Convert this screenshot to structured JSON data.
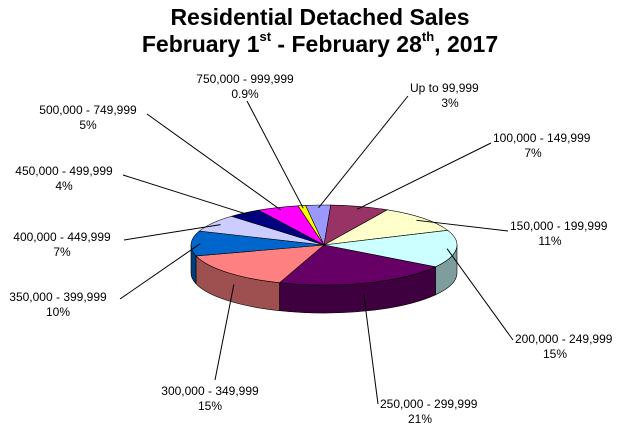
{
  "chart_data": {
    "type": "pie",
    "title": {
      "line1": "Residential Detached Sales",
      "line2_a": "February 1",
      "line2_sup1": "st",
      "line2_b": " - February 28",
      "line2_sup2": "th",
      "line2_c": ", 2017"
    },
    "slices": [
      {
        "label": "Up to 99,999",
        "percent_label": "3%",
        "value": 3,
        "color": "#9999ff"
      },
      {
        "label": "100,000 - 149,999",
        "percent_label": "7%",
        "value": 7,
        "color": "#993366"
      },
      {
        "label": "150,000 - 199,999",
        "percent_label": "11%",
        "value": 11,
        "color": "#ffffcc"
      },
      {
        "label": "200,000 - 249,999",
        "percent_label": "15%",
        "value": 15,
        "color": "#ccffff"
      },
      {
        "label": "250,000 - 299,999",
        "percent_label": "21%",
        "value": 21,
        "color": "#660066"
      },
      {
        "label": "300,000 - 349,999",
        "percent_label": "15%",
        "value": 15,
        "color": "#ff8080"
      },
      {
        "label": "350,000 - 399,999",
        "percent_label": "10%",
        "value": 10,
        "color": "#0066cc"
      },
      {
        "label": "400,000 - 449,999",
        "percent_label": "7%",
        "value": 7,
        "color": "#ccccff"
      },
      {
        "label": "450,000 - 499,999",
        "percent_label": "4%",
        "value": 4,
        "color": "#000080"
      },
      {
        "label": "500,000 - 749,999",
        "percent_label": "5%",
        "value": 5,
        "color": "#ff00ff"
      },
      {
        "label": "750,000 - 999,999",
        "percent_label": "0.9%",
        "value": 0.9,
        "color": "#ffff00"
      }
    ],
    "legend": "none",
    "style": "3d-pie-with-leader-labels"
  }
}
